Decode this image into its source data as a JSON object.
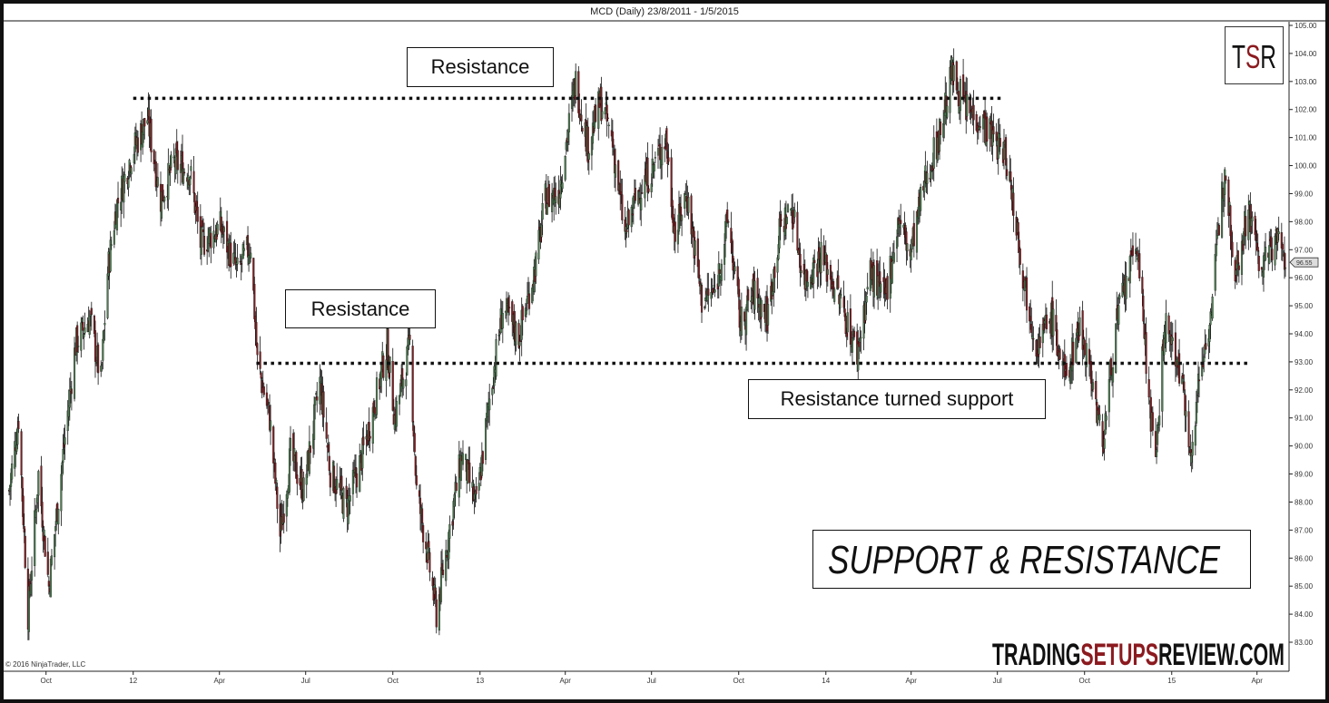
{
  "window": {
    "title": "MCD (Daily)  23/8/2011 - 1/5/2015"
  },
  "copyright": "© 2016 NinjaTrader, LLC",
  "logo": {
    "t": "T",
    "s": "S",
    "r": "R"
  },
  "watermark": {
    "part1": "TRADING",
    "part2": "SETUPS",
    "part3": "REVIEW.COM"
  },
  "annotations": {
    "resistance_top": "Resistance",
    "resistance_mid": "Resistance",
    "turned_support": "Resistance turned support",
    "headline": "SUPPORT & RESISTANCE"
  },
  "colors": {
    "up": "#4f7a52",
    "down": "#7a1f22",
    "wick": "#111111",
    "accent_red": "#8b1a1f"
  },
  "chart_data": {
    "type": "candlestick",
    "title": "MCD (Daily)  23/8/2011 - 1/5/2015",
    "ylim": [
      83,
      105
    ],
    "xlim": [
      "2011-08-23",
      "2015-05-01"
    ],
    "y_ticks": [
      "105.00",
      "104.00",
      "103.00",
      "102.00",
      "101.00",
      "100.00",
      "99.00",
      "98.00",
      "97.00",
      "96.00",
      "95.00",
      "94.00",
      "93.00",
      "92.00",
      "91.00",
      "90.00",
      "89.00",
      "88.00",
      "87.00",
      "86.00",
      "85.00",
      "84.00",
      "83.00"
    ],
    "x_ticks": [
      {
        "label": "Oct",
        "date": "2011-10-01"
      },
      {
        "label": "12",
        "date": "2012-01-01"
      },
      {
        "label": "Apr",
        "date": "2012-04-01"
      },
      {
        "label": "Jul",
        "date": "2012-07-01"
      },
      {
        "label": "Oct",
        "date": "2012-10-01"
      },
      {
        "label": "13",
        "date": "2013-01-01"
      },
      {
        "label": "Apr",
        "date": "2013-04-01"
      },
      {
        "label": "Jul",
        "date": "2013-07-01"
      },
      {
        "label": "Oct",
        "date": "2013-10-01"
      },
      {
        "label": "14",
        "date": "2014-01-01"
      },
      {
        "label": "Apr",
        "date": "2014-04-01"
      },
      {
        "label": "Jul",
        "date": "2014-07-01"
      },
      {
        "label": "Oct",
        "date": "2014-10-01"
      },
      {
        "label": "15",
        "date": "2015-01-01"
      },
      {
        "label": "Apr",
        "date": "2015-04-01"
      }
    ],
    "last_price": "96.55",
    "levels": [
      {
        "name": "resistance",
        "price": 102.4,
        "from": "2012-01-01",
        "to": "2014-07-05"
      },
      {
        "name": "resistance turned support",
        "price": 92.95,
        "from": "2012-05-10",
        "to": "2015-03-25"
      }
    ],
    "approx_closes": [
      [
        "2011-08-23",
        88.4
      ],
      [
        "2011-09-02",
        91.0
      ],
      [
        "2011-09-12",
        84.0
      ],
      [
        "2011-09-23",
        89.0
      ],
      [
        "2011-10-04",
        85.0
      ],
      [
        "2011-10-20",
        90.0
      ],
      [
        "2011-11-01",
        93.6
      ],
      [
        "2011-11-16",
        94.6
      ],
      [
        "2011-11-28",
        92.3
      ],
      [
        "2011-12-05",
        96.2
      ],
      [
        "2011-12-14",
        98.5
      ],
      [
        "2011-12-30",
        100.4
      ],
      [
        "2012-01-16",
        101.7
      ],
      [
        "2012-01-30",
        98.8
      ],
      [
        "2012-02-13",
        100.1
      ],
      [
        "2012-03-01",
        99.8
      ],
      [
        "2012-03-12",
        97.2
      ],
      [
        "2012-04-02",
        97.8
      ],
      [
        "2012-04-20",
        96.2
      ],
      [
        "2012-05-04",
        97.2
      ],
      [
        "2012-05-11",
        93.0
      ],
      [
        "2012-05-24",
        91.0
      ],
      [
        "2012-06-04",
        86.8
      ],
      [
        "2012-06-15",
        89.7
      ],
      [
        "2012-06-29",
        88.4
      ],
      [
        "2012-07-16",
        92.3
      ],
      [
        "2012-07-27",
        89.1
      ],
      [
        "2012-08-13",
        87.8
      ],
      [
        "2012-08-30",
        89.7
      ],
      [
        "2012-09-13",
        91.7
      ],
      [
        "2012-09-25",
        93.6
      ],
      [
        "2012-10-03",
        91.0
      ],
      [
        "2012-10-19",
        93.6
      ],
      [
        "2012-10-26",
        88.4
      ],
      [
        "2012-11-05",
        86.5
      ],
      [
        "2012-11-16",
        84.0
      ],
      [
        "2012-11-30",
        87.1
      ],
      [
        "2012-12-13",
        89.7
      ],
      [
        "2012-12-28",
        87.8
      ],
      [
        "2013-01-11",
        91.7
      ],
      [
        "2013-01-25",
        94.9
      ],
      [
        "2013-02-11",
        93.9
      ],
      [
        "2013-03-01",
        96.5
      ],
      [
        "2013-03-11",
        98.8
      ],
      [
        "2013-03-25",
        99.1
      ],
      [
        "2013-04-12",
        103.0
      ],
      [
        "2013-04-25",
        100.7
      ],
      [
        "2013-05-08",
        102.3
      ],
      [
        "2013-05-20",
        101.0
      ],
      [
        "2013-06-03",
        97.5
      ],
      [
        "2013-06-17",
        99.1
      ],
      [
        "2013-07-01",
        99.8
      ],
      [
        "2013-07-16",
        101.0
      ],
      [
        "2013-07-26",
        97.5
      ],
      [
        "2013-08-07",
        99.1
      ],
      [
        "2013-08-23",
        95.2
      ],
      [
        "2013-09-06",
        95.5
      ],
      [
        "2013-09-20",
        98.1
      ],
      [
        "2013-10-03",
        94.3
      ],
      [
        "2013-10-17",
        95.5
      ],
      [
        "2013-10-31",
        94.6
      ],
      [
        "2013-11-14",
        97.8
      ],
      [
        "2013-11-26",
        98.5
      ],
      [
        "2013-12-09",
        95.9
      ],
      [
        "2013-12-27",
        96.8
      ],
      [
        "2014-01-13",
        95.5
      ],
      [
        "2014-02-03",
        93.3
      ],
      [
        "2014-02-17",
        96.2
      ],
      [
        "2014-03-04",
        95.2
      ],
      [
        "2014-03-19",
        98.1
      ],
      [
        "2014-03-31",
        96.8
      ],
      [
        "2014-04-15",
        99.4
      ],
      [
        "2014-04-30",
        101.0
      ],
      [
        "2014-05-14",
        103.3
      ],
      [
        "2014-05-29",
        102.0
      ],
      [
        "2014-06-12",
        101.7
      ],
      [
        "2014-06-26",
        101.0
      ],
      [
        "2014-07-10",
        100.4
      ],
      [
        "2014-07-22",
        97.8
      ],
      [
        "2014-07-29",
        95.9
      ],
      [
        "2014-08-12",
        93.6
      ],
      [
        "2014-08-27",
        94.6
      ],
      [
        "2014-09-11",
        92.3
      ],
      [
        "2014-09-25",
        94.3
      ],
      [
        "2014-10-06",
        93.0
      ],
      [
        "2014-10-20",
        90.0
      ],
      [
        "2014-11-03",
        94.3
      ],
      [
        "2014-11-17",
        96.2
      ],
      [
        "2014-11-26",
        97.2
      ],
      [
        "2014-12-05",
        93.0
      ],
      [
        "2014-12-15",
        89.1
      ],
      [
        "2014-12-24",
        94.3
      ],
      [
        "2015-01-06",
        93.3
      ],
      [
        "2015-01-23",
        89.7
      ],
      [
        "2015-01-29",
        92.3
      ],
      [
        "2015-02-12",
        94.9
      ],
      [
        "2015-02-26",
        100.1
      ],
      [
        "2015-03-09",
        96.2
      ],
      [
        "2015-03-23",
        98.5
      ],
      [
        "2015-04-06",
        96.2
      ],
      [
        "2015-04-20",
        97.5
      ],
      [
        "2015-05-01",
        96.7
      ]
    ]
  }
}
